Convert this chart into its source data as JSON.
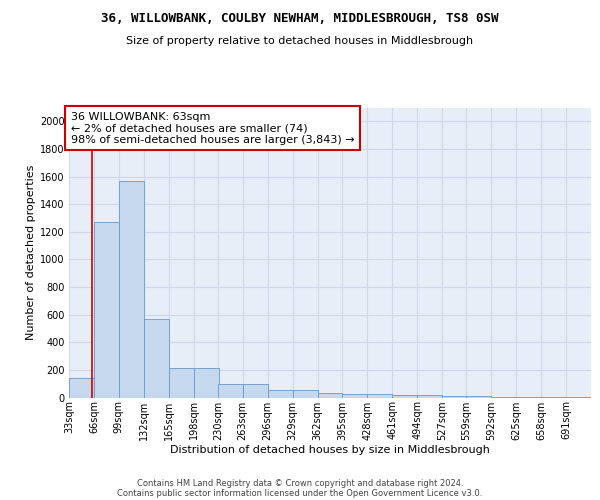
{
  "title": "36, WILLOWBANK, COULBY NEWHAM, MIDDLESBROUGH, TS8 0SW",
  "subtitle": "Size of property relative to detached houses in Middlesbrough",
  "xlabel": "Distribution of detached houses by size in Middlesbrough",
  "ylabel": "Number of detached properties",
  "bar_color": "#c5d8ee",
  "bar_edge_color": "#6699cc",
  "bg_color": "#e8eef8",
  "annotation_line1": "36 WILLOWBANK: 63sqm",
  "annotation_line2": "← 2% of detached houses are smaller (74)",
  "annotation_line3": "98% of semi-detached houses are larger (3,843) →",
  "vline_x": 63,
  "categories": [
    "33sqm",
    "66sqm",
    "99sqm",
    "132sqm",
    "165sqm",
    "198sqm",
    "230sqm",
    "263sqm",
    "296sqm",
    "329sqm",
    "362sqm",
    "395sqm",
    "428sqm",
    "461sqm",
    "494sqm",
    "527sqm",
    "559sqm",
    "592sqm",
    "625sqm",
    "658sqm",
    "691sqm"
  ],
  "bin_left_edges": [
    33,
    66,
    99,
    132,
    165,
    198,
    230,
    263,
    296,
    329,
    362,
    395,
    428,
    461,
    494,
    527,
    559,
    592,
    625,
    658,
    691
  ],
  "bin_width": 33,
  "bar_heights": [
    140,
    1270,
    1570,
    570,
    215,
    215,
    100,
    100,
    55,
    55,
    30,
    25,
    25,
    20,
    15,
    10,
    8,
    5,
    5,
    3,
    3
  ],
  "ylim": [
    0,
    2100
  ],
  "yticks": [
    0,
    200,
    400,
    600,
    800,
    1000,
    1200,
    1400,
    1600,
    1800,
    2000
  ],
  "footer_line1": "Contains HM Land Registry data © Crown copyright and database right 2024.",
  "footer_line2": "Contains public sector information licensed under the Open Government Licence v3.0.",
  "ann_box_facecolor": "#ffffff",
  "ann_box_edgecolor": "#cc0000",
  "vline_color": "#cc0000",
  "grid_color": "#d0d8e8",
  "title_fontsize": 9,
  "subtitle_fontsize": 8,
  "ylabel_fontsize": 8,
  "xlabel_fontsize": 8,
  "tick_fontsize": 7,
  "ann_fontsize": 8,
  "footer_fontsize": 6
}
